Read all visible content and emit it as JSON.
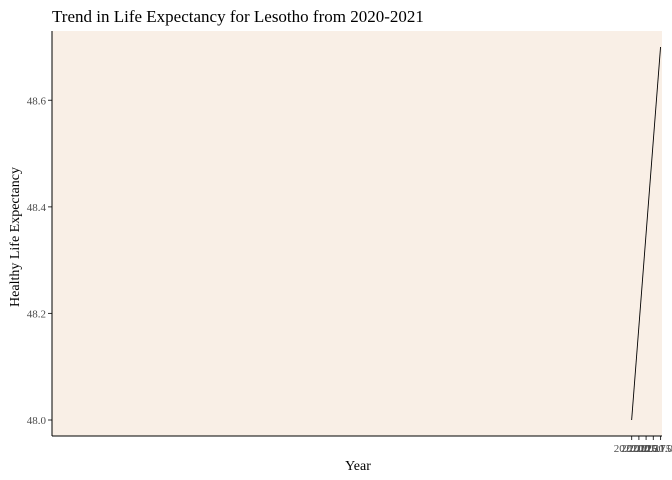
{
  "chart_data": {
    "type": "line",
    "title": "Trend in Life Expectancy for Lesotho from 2020-2021",
    "xlabel": "Year",
    "ylabel": "Healthy Life Expectancy",
    "xlim": [
      1999.95,
      2021.05
    ],
    "ylim": [
      47.97,
      48.73
    ],
    "x_ticks": [
      2020.0,
      2020.25,
      2020.5,
      2020.75,
      2021.0
    ],
    "x_tick_labels": [
      "2020.00",
      "2020.25",
      "2020.50",
      "2020.75",
      "2021.00"
    ],
    "y_ticks": [
      48.0,
      48.2,
      48.4,
      48.6
    ],
    "y_tick_labels": [
      "48.0",
      "48.2",
      "48.4",
      "48.6"
    ],
    "grid": false,
    "series": [
      {
        "x": [
          2020,
          2021
        ],
        "y": [
          48.0,
          48.7
        ]
      }
    ],
    "colors": {
      "panel_background": "#f9efe6",
      "line": "#000000",
      "axis": "#000000"
    }
  }
}
